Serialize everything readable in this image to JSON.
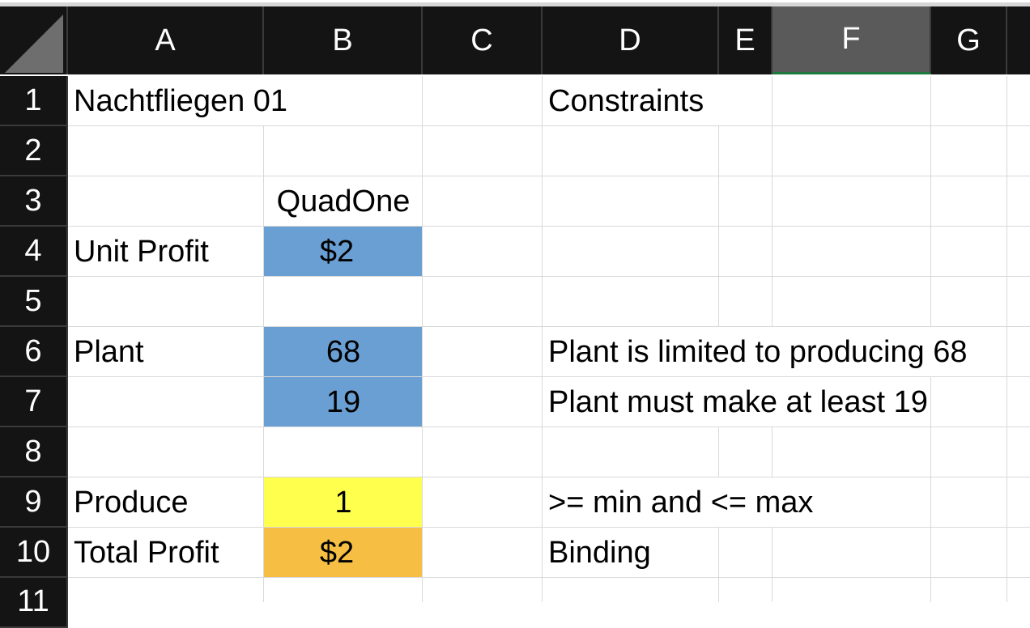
{
  "spreadsheet": {
    "columns": [
      "A",
      "B",
      "C",
      "D",
      "E",
      "F",
      "G"
    ],
    "selected_column": "F",
    "rows": [
      "1",
      "2",
      "3",
      "4",
      "5",
      "6",
      "7",
      "8",
      "9",
      "10",
      "11"
    ]
  },
  "cells": {
    "A1": "Nachtfliegen 01",
    "D1": "Constraints",
    "B3": "QuadOne",
    "A4": "Unit Profit",
    "B4": "$2",
    "A6": "Plant",
    "B6": "68",
    "D6": "Plant is limited to producing 68",
    "B7": "19",
    "D7": "Plant must make at least 19",
    "A9": "Produce",
    "B9": "1",
    "D9": ">= min and <= max",
    "A10": "Total Profit",
    "B10": "$2",
    "D10": "Binding"
  },
  "colors": {
    "input_fill": "#6a9fd4",
    "decision_fill": "#ffff4d",
    "objective_fill": "#f6bf44",
    "header_bg": "#141414",
    "selected_header_bg": "#5a5a5a"
  }
}
